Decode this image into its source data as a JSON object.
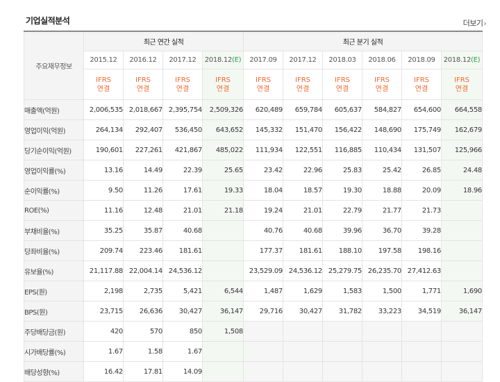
{
  "section_title": "기업실적분석",
  "more_label": "더보기",
  "more_arrow": "›",
  "row_header": "주요재무정보",
  "groups": {
    "annual": "최근 연간 실적",
    "quarterly": "최근 분기 실적"
  },
  "periods": {
    "annual": [
      "2015.12",
      "2016.12",
      "2017.12",
      "2018.12"
    ],
    "annual_est_suffix": "(E)",
    "quarterly": [
      "2017.09",
      "2017.12",
      "2018.03",
      "2018.06",
      "2018.09",
      "2018.12"
    ],
    "quarterly_est_suffix": "(E)"
  },
  "ifrs": {
    "line1": "IFRS",
    "line2": "연결"
  },
  "rows": [
    {
      "label": "매출액(억원)",
      "annual": [
        "2,006,535",
        "2,018,667",
        "2,395,754",
        "2,509,326"
      ],
      "quarterly": [
        "620,489",
        "659,784",
        "605,637",
        "584,827",
        "654,600",
        "664,558"
      ]
    },
    {
      "label": "영업이익(억원)",
      "annual": [
        "264,134",
        "292,407",
        "536,450",
        "643,652"
      ],
      "quarterly": [
        "145,332",
        "151,470",
        "156,422",
        "148,690",
        "175,749",
        "162,679"
      ]
    },
    {
      "label": "당기순이익(억원)",
      "annual": [
        "190,601",
        "227,261",
        "421,867",
        "485,022"
      ],
      "quarterly": [
        "111,934",
        "122,551",
        "116,885",
        "110,434",
        "131,507",
        "125,966"
      ]
    },
    {
      "label": "영업이익률(%)",
      "annual": [
        "13.16",
        "14.49",
        "22.39",
        "25.65"
      ],
      "quarterly": [
        "23.42",
        "22.96",
        "25.83",
        "25.42",
        "26.85",
        "24.48"
      ]
    },
    {
      "label": "순이익률(%)",
      "annual": [
        "9.50",
        "11.26",
        "17.61",
        "19.33"
      ],
      "quarterly": [
        "18.04",
        "18.57",
        "19.30",
        "18.88",
        "20.09",
        "18.96"
      ]
    },
    {
      "label": "ROE(%)",
      "annual": [
        "11.16",
        "12.48",
        "21.01",
        "21.18"
      ],
      "quarterly": [
        "19.24",
        "21.01",
        "22.79",
        "21.77",
        "21.73",
        ""
      ]
    },
    {
      "label": "부채비율(%)",
      "annual": [
        "35.25",
        "35.87",
        "40.68",
        ""
      ],
      "quarterly": [
        "40.76",
        "40.68",
        "39.96",
        "36.70",
        "39.28",
        ""
      ]
    },
    {
      "label": "당좌비율(%)",
      "annual": [
        "209.74",
        "223.46",
        "181.61",
        ""
      ],
      "quarterly": [
        "177.37",
        "181.61",
        "188.10",
        "197.58",
        "198.16",
        ""
      ]
    },
    {
      "label": "유보율(%)",
      "annual": [
        "21,117.88",
        "22,004.14",
        "24,536.12",
        ""
      ],
      "quarterly": [
        "23,529.09",
        "24,536.12",
        "25,279.75",
        "26,235.70",
        "27,412.63",
        ""
      ]
    },
    {
      "label": "EPS(원)",
      "annual": [
        "2,198",
        "2,735",
        "5,421",
        "6,544"
      ],
      "quarterly": [
        "1,487",
        "1,629",
        "1,583",
        "1,500",
        "1,771",
        "1,690"
      ]
    },
    {
      "label": "BPS(원)",
      "annual": [
        "23,715",
        "26,636",
        "30,427",
        "36,147"
      ],
      "quarterly": [
        "29,716",
        "30,427",
        "31,782",
        "33,223",
        "34,519",
        "36,147"
      ]
    },
    {
      "label": "주당배당금(원)",
      "annual": [
        "420",
        "570",
        "850",
        "1,508"
      ],
      "quarterly": [
        "",
        "",
        "",
        "",
        "",
        ""
      ]
    },
    {
      "label": "시가배당률(%)",
      "annual": [
        "1.67",
        "1.58",
        "1.67",
        ""
      ],
      "quarterly": [
        "",
        "",
        "",
        "",
        "",
        ""
      ]
    },
    {
      "label": "배당성향(%)",
      "annual": [
        "16.42",
        "17.81",
        "14.09",
        ""
      ],
      "quarterly": [
        "",
        "",
        "",
        "",
        "",
        ""
      ]
    }
  ]
}
